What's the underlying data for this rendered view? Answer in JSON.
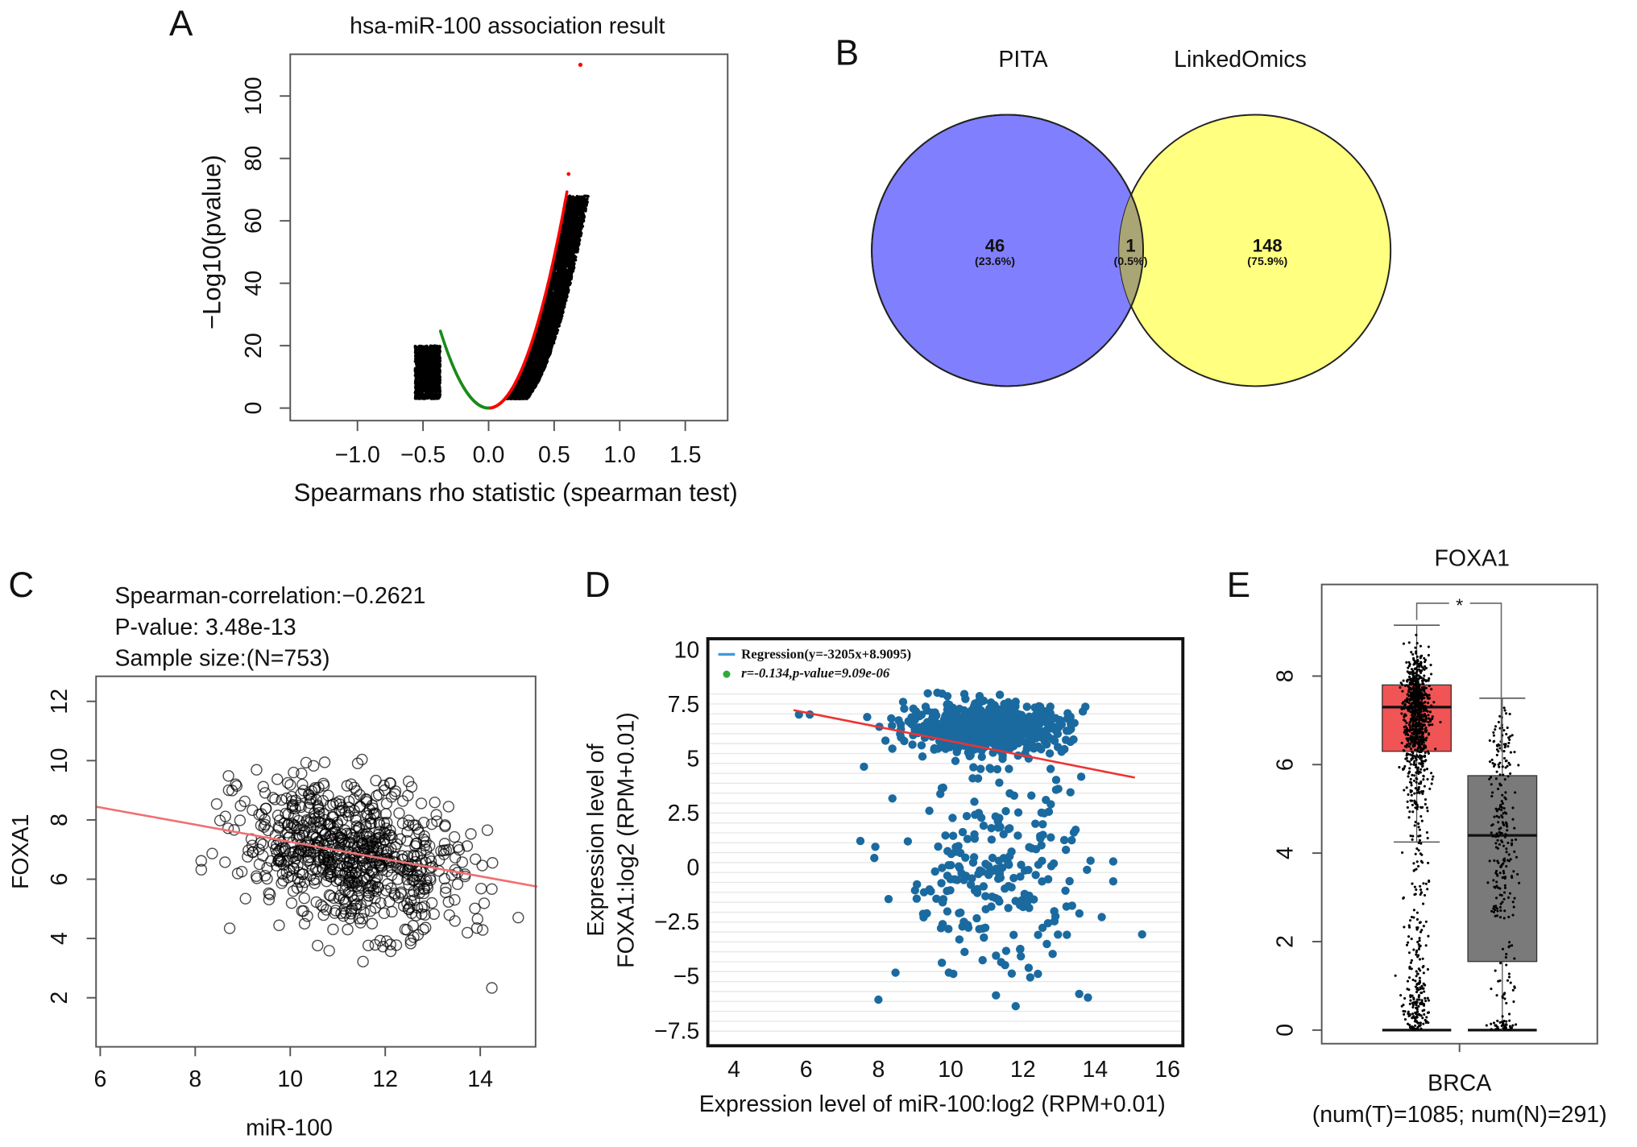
{
  "panels": {
    "A": {
      "letter": "A"
    },
    "B": {
      "letter": "B"
    },
    "C": {
      "letter": "C"
    },
    "D": {
      "letter": "D"
    },
    "E": {
      "letter": "E"
    }
  },
  "chart_data": [
    {
      "panel": "A",
      "type": "scatter",
      "title": "hsa-miR-100 association result",
      "xlabel": "Spearmans rho statistic (spearman test)",
      "ylabel": "−Log10(pvalue)",
      "xlim": [
        -1.5,
        1.8
      ],
      "ylim": [
        -4,
        113
      ],
      "xticks": [
        "−1.0",
        "−0.5",
        "0.0",
        "0.5",
        "1.0",
        "1.5"
      ],
      "yticks": [
        "0",
        "20",
        "40",
        "60",
        "80",
        "100"
      ],
      "highlight_colors": {
        "positive": "#ff0000",
        "negative": "#1a8a1a",
        "other": "#000000"
      },
      "notable_points": [
        {
          "x": 0.7,
          "y": 110,
          "color": "#ff0000"
        }
      ],
      "positive_max_y": 75,
      "negative_max_y": 26
    },
    {
      "panel": "B",
      "type": "venn",
      "sets": [
        {
          "name": "PITA",
          "color": "#8080ff",
          "label_color": "#4a4aff"
        },
        {
          "name": "LinkedOmics",
          "color": "#ffff80",
          "label_color": "#7a8a2e"
        }
      ],
      "overlap_color": "#aaa574",
      "regions": [
        {
          "count": "46",
          "percent": "(23.6%)"
        },
        {
          "count": "1",
          "percent": "(0.5%)"
        },
        {
          "count": "148",
          "percent": "(75.9%)"
        }
      ]
    },
    {
      "panel": "C",
      "type": "scatter",
      "annotations": [
        "Spearman-correlation:−0.2621",
        "P-value: 3.48e-13",
        "Sample size:(N=753)"
      ],
      "xlabel": "miR-100",
      "ylabel": "FOXA1",
      "xlim": [
        5.9,
        15.2
      ],
      "ylim": [
        0.9,
        13.1
      ],
      "xticks": [
        "6",
        "8",
        "10",
        "12",
        "14"
      ],
      "yticks": [
        "2",
        "4",
        "6",
        "8",
        "10",
        "12"
      ],
      "regression_line": {
        "x": [
          5.9,
          15.2
        ],
        "y": [
          8.45,
          5.75
        ],
        "color": "#f07070"
      },
      "point_count": 753
    },
    {
      "panel": "D",
      "type": "scatter",
      "legend": [
        "Regression(y=-3205x+8.9095)",
        "r=-0.134,p-value=9.09e-06"
      ],
      "legend_colors": [
        "#3b9ad9",
        "#2eaa3a"
      ],
      "xlabel": "Expression level of miR-100:log2 (RPM+0.01)",
      "ylabel": [
        "Expression level of",
        "FOXA1:log2 (RPM+0.01)"
      ],
      "xlim": [
        3.3,
        16.7
      ],
      "ylim": [
        -8,
        10.5
      ],
      "xticks": [
        "4",
        "6",
        "8",
        "10",
        "12",
        "14",
        "16"
      ],
      "yticks": [
        "10",
        "7.5",
        "5",
        "2.5",
        "0",
        "−2.5",
        "−5",
        "−7.5"
      ],
      "point_color": "#1a6aa0",
      "regression_line": {
        "x": [
          5.65,
          15.1
        ],
        "y": [
          7.2,
          4.1
        ],
        "color": "#ee3333"
      }
    },
    {
      "panel": "E",
      "type": "box",
      "title": "FOXA1",
      "xlabel": "BRCA",
      "xsublabel": "(num(T)=1085; num(N)=291)",
      "yticks": [
        "0",
        "2",
        "4",
        "6",
        "8"
      ],
      "ylim": [
        -0.6,
        10.2
      ],
      "significance": "*",
      "significance_color": "#ff3333",
      "boxes": [
        {
          "group": "T",
          "color": "#f05454",
          "q1": 6.3,
          "median": 7.3,
          "q3": 7.8,
          "whisker_low": 4.25,
          "whisker_high": 9.15
        },
        {
          "group": "N",
          "color": "#7a7a7a",
          "q1": 1.55,
          "median": 4.4,
          "q3": 5.75,
          "whisker_low": 0,
          "whisker_high": 7.5
        }
      ]
    }
  ]
}
